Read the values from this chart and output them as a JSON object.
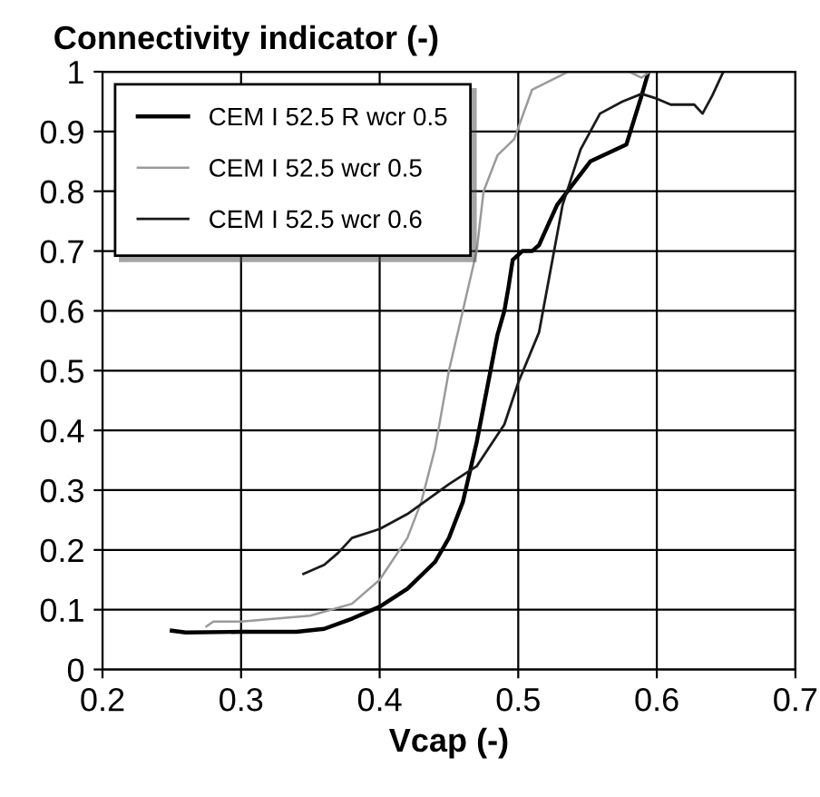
{
  "chart_data": {
    "type": "line",
    "title": "Connectivity indicator (-)",
    "xlabel": "Vcap (-)",
    "xlim": [
      0.2,
      0.7
    ],
    "ylim": [
      0,
      1
    ],
    "xticks": [
      0.2,
      0.3,
      0.4,
      0.5,
      0.6,
      0.7
    ],
    "yticks": [
      0,
      0.1,
      0.2,
      0.3,
      0.4,
      0.5,
      0.6,
      0.7,
      0.8,
      0.9,
      1
    ],
    "grid": true,
    "legend": "top left",
    "marker": "none",
    "line_style": "solid",
    "series": [
      {
        "name": "CEM I 52.5 R wcr 0.5",
        "color": "#000000",
        "x": [
          0.25,
          0.26,
          0.3,
          0.34,
          0.36,
          0.38,
          0.4,
          0.42,
          0.44,
          0.45,
          0.46,
          0.47,
          0.48,
          0.485,
          0.49,
          0.493,
          0.496,
          0.503,
          0.51,
          0.515,
          0.528,
          0.552,
          0.578,
          0.589,
          0.594
        ],
        "values": [
          0.065,
          0.062,
          0.063,
          0.063,
          0.068,
          0.085,
          0.105,
          0.135,
          0.18,
          0.22,
          0.28,
          0.38,
          0.5,
          0.56,
          0.6,
          0.64,
          0.685,
          0.7,
          0.7,
          0.71,
          0.777,
          0.85,
          0.878,
          0.96,
          1.0
        ]
      },
      {
        "name": "CEM I 52.5 wcr 0.5",
        "color": "#9a9a9a",
        "x": [
          0.275,
          0.28,
          0.3,
          0.35,
          0.38,
          0.4,
          0.42,
          0.43,
          0.44,
          0.45,
          0.46,
          0.47,
          0.475,
          0.485,
          0.497,
          0.51,
          0.536,
          0.56,
          0.58,
          0.589,
          0.595
        ],
        "values": [
          0.072,
          0.08,
          0.08,
          0.09,
          0.11,
          0.15,
          0.22,
          0.28,
          0.37,
          0.5,
          0.6,
          0.7,
          0.8,
          0.86,
          0.887,
          0.97,
          1.0,
          1.0,
          1.0,
          0.99,
          1.0
        ]
      },
      {
        "name": "CEM I 52.5 wcr 0.6",
        "color": "#1a1a1a",
        "x": [
          0.345,
          0.36,
          0.37,
          0.38,
          0.4,
          0.42,
          0.45,
          0.47,
          0.49,
          0.5,
          0.515,
          0.532,
          0.545,
          0.559,
          0.575,
          0.589,
          0.6,
          0.61,
          0.627,
          0.633,
          0.64,
          0.648
        ],
        "values": [
          0.16,
          0.175,
          0.195,
          0.22,
          0.235,
          0.26,
          0.31,
          0.34,
          0.41,
          0.48,
          0.564,
          0.777,
          0.87,
          0.93,
          0.95,
          0.963,
          0.955,
          0.945,
          0.945,
          0.93,
          0.96,
          1.0
        ]
      }
    ]
  }
}
